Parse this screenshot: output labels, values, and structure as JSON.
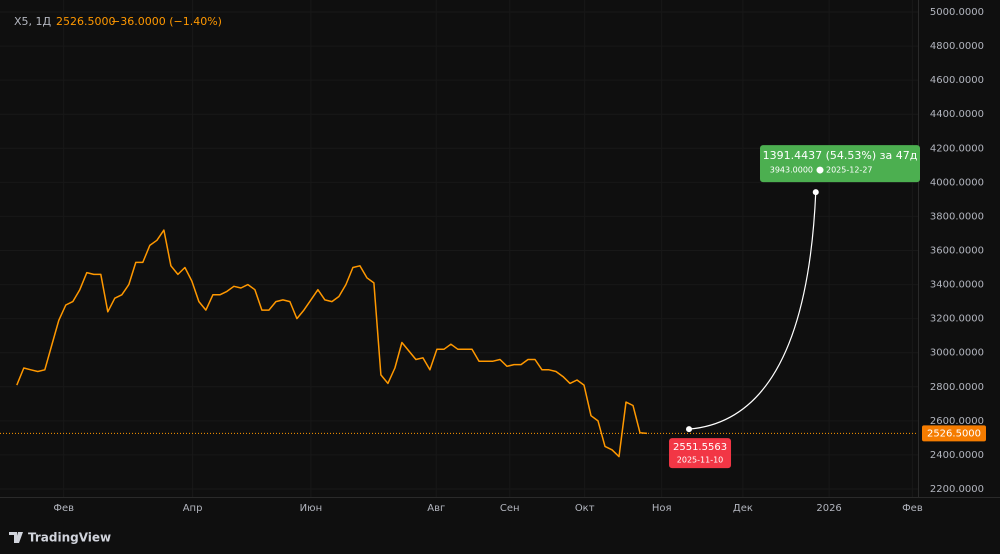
{
  "header": {
    "symbol": "X5, 1Д",
    "price": "2526.5000",
    "change": "−36.0000 (−1.40%)"
  },
  "branding": "TradingView",
  "chart_data": {
    "type": "line",
    "color": "#ff9800",
    "grid": true,
    "x": [
      0,
      1,
      2,
      3,
      4,
      5,
      6,
      7,
      8,
      9,
      10,
      11,
      12,
      13,
      14,
      15,
      16,
      17,
      18,
      19,
      20,
      21,
      22,
      23,
      24,
      25,
      26,
      27,
      28,
      29,
      30,
      31,
      32,
      33,
      34,
      35,
      36,
      37,
      38,
      39,
      40,
      41,
      42,
      43,
      44,
      45,
      46,
      47,
      48,
      49,
      50,
      51,
      52,
      53,
      54,
      55,
      56,
      57,
      58,
      59,
      60,
      61,
      62,
      63,
      64,
      65,
      66,
      67,
      68,
      69,
      70,
      71,
      72,
      73,
      74,
      75,
      76,
      77,
      78,
      79,
      80,
      81,
      82,
      83,
      84,
      85,
      86,
      87,
      88,
      89,
      90
    ],
    "values": [
      2810,
      2910,
      2900,
      2890,
      2900,
      3045,
      3190,
      3280,
      3300,
      3370,
      3470,
      3460,
      3460,
      3240,
      3320,
      3340,
      3400,
      3530,
      3530,
      3630,
      3660,
      3720,
      3510,
      3460,
      3500,
      3420,
      3300,
      3250,
      3340,
      3340,
      3360,
      3390,
      3380,
      3400,
      3370,
      3250,
      3250,
      3300,
      3310,
      3300,
      3200,
      3250,
      3310,
      3370,
      3310,
      3300,
      3330,
      3400,
      3500,
      3510,
      3440,
      3410,
      2870,
      2820,
      2910,
      3060,
      3010,
      2960,
      2970,
      2900,
      3020,
      3020,
      3050,
      3020,
      3020,
      3020,
      2950,
      2950,
      2950,
      2960,
      2920,
      2930,
      2930,
      2960,
      2960,
      2900,
      2900,
      2890,
      2860,
      2820,
      2840,
      2810,
      2630,
      2600,
      2450,
      2430,
      2390,
      2710,
      2690,
      2530,
      2526.5
    ],
    "xlim": [
      -2.4,
      128.7
    ],
    "xticks": [
      {
        "value": 6.7,
        "label": "Фев"
      },
      {
        "value": 25.1,
        "label": "Апр"
      },
      {
        "value": 42,
        "label": "Июн"
      },
      {
        "value": 59.9,
        "label": "Авг"
      },
      {
        "value": 70.4,
        "label": "Сен"
      },
      {
        "value": 81.1,
        "label": "Окт"
      },
      {
        "value": 92.1,
        "label": "Ноя"
      },
      {
        "value": 103.7,
        "label": "Дек"
      },
      {
        "value": 116,
        "label": "2026"
      },
      {
        "value": 127.9,
        "label": "Фев"
      }
    ],
    "ylim": [
      2200,
      5000
    ],
    "yticks": [
      {
        "value": 2200,
        "label": "2200.0000"
      },
      {
        "value": 2400,
        "label": "2400.0000"
      },
      {
        "value": 2600,
        "label": "2600.0000"
      },
      {
        "value": 2800,
        "label": "2800.0000"
      },
      {
        "value": 3000,
        "label": "3000.0000"
      },
      {
        "value": 3200,
        "label": "3200.0000"
      },
      {
        "value": 3400,
        "label": "3400.0000"
      },
      {
        "value": 3600,
        "label": "3600.0000"
      },
      {
        "value": 3800,
        "label": "3800.0000"
      },
      {
        "value": 4000,
        "label": "4000.0000"
      },
      {
        "value": 4200,
        "label": "4200.0000"
      },
      {
        "value": 4400,
        "label": "4400.0000"
      },
      {
        "value": 4600,
        "label": "4600.0000"
      },
      {
        "value": 4800,
        "label": "4800.0000"
      },
      {
        "value": 5000,
        "label": "5000.0000"
      }
    ],
    "last_price": {
      "value": 2526.5,
      "label": "2526.5000"
    },
    "projection": {
      "change": "1391.4437 (54.53%) за 47д",
      "from": {
        "x": 96,
        "value": 2551.5563,
        "date": "2025-11-10"
      },
      "to": {
        "x": 114.1,
        "value": 3943,
        "value_label": "3943.0000",
        "date": "2025-12-27"
      }
    }
  }
}
